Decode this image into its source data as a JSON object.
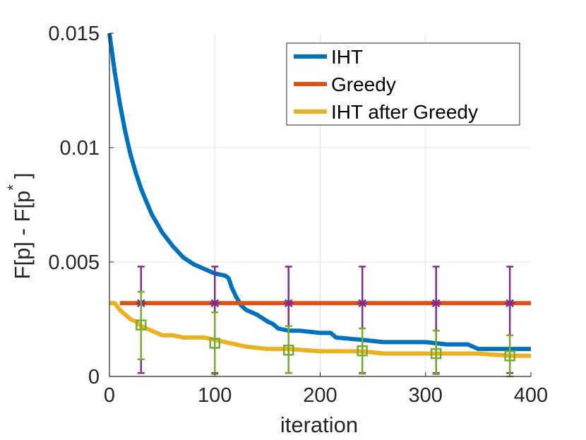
{
  "chart_data": {
    "type": "line",
    "title": "",
    "xlabel": "iteration",
    "ylabel_main": "F[p] - F[p",
    "ylabel_sup": "*",
    "ylabel_close": "]",
    "xlim": [
      0,
      400
    ],
    "ylim": [
      0,
      0.015
    ],
    "xticks": [
      0,
      100,
      200,
      300,
      400
    ],
    "xtick_labels": [
      "0",
      "100",
      "200",
      "300",
      "400"
    ],
    "yticks": [
      0,
      0.005,
      0.01,
      0.015
    ],
    "ytick_labels": [
      "0",
      "0.005",
      "0.01",
      "0.015"
    ],
    "grid": true,
    "legend_position": "top-right",
    "series": [
      {
        "name": "IHT",
        "color": "#0072BD",
        "style": "solid",
        "x": [
          0,
          5,
          10,
          15,
          20,
          25,
          30,
          40,
          50,
          60,
          70,
          80,
          90,
          100,
          110,
          113,
          116,
          120,
          125,
          130,
          140,
          150,
          155,
          160,
          170,
          180,
          200,
          210,
          215,
          240,
          260,
          300,
          320,
          330,
          340,
          345,
          350,
          400
        ],
        "y": [
          0.015,
          0.0133,
          0.0119,
          0.0107,
          0.0097,
          0.0089,
          0.0082,
          0.0071,
          0.0063,
          0.0057,
          0.0052,
          0.0049,
          0.0047,
          0.0045,
          0.0044,
          0.0043,
          0.0039,
          0.0035,
          0.0031,
          0.0029,
          0.0027,
          0.0024,
          0.0023,
          0.0021,
          0.002,
          0.002,
          0.0019,
          0.0019,
          0.0017,
          0.0016,
          0.0015,
          0.0015,
          0.0014,
          0.0014,
          0.0014,
          0.0013,
          0.0012,
          0.0012
        ]
      },
      {
        "name": "Greedy",
        "color": "#D95319",
        "style": "solid",
        "x": [
          10,
          400
        ],
        "y": [
          0.0032,
          0.0032
        ]
      },
      {
        "name": "IHT after Greedy",
        "color": "#EDB120",
        "style": "solid",
        "x": [
          0,
          5,
          10,
          15,
          20,
          25,
          30,
          40,
          50,
          60,
          70,
          80,
          90,
          100,
          110,
          130,
          150,
          170,
          200,
          240,
          260,
          300,
          350,
          380,
          400
        ],
        "y": [
          0.0032,
          0.0032,
          0.0029,
          0.0027,
          0.0025,
          0.0024,
          0.0022,
          0.002,
          0.0018,
          0.0018,
          0.0017,
          0.0017,
          0.0017,
          0.0016,
          0.0015,
          0.0013,
          0.0012,
          0.0012,
          0.0011,
          0.0011,
          0.001,
          0.001,
          0.001,
          0.0009,
          0.0009
        ]
      },
      {
        "name": "Greedy error bars",
        "color": "#7E2F8E",
        "marker": "star",
        "x": [
          30,
          100,
          170,
          240,
          310,
          380
        ],
        "y": [
          0.0032,
          0.0032,
          0.0032,
          0.0032,
          0.0032,
          0.0032
        ],
        "err_low": [
          0.00015,
          0.00015,
          0.00015,
          0.00015,
          0.00015,
          0.00015
        ],
        "err_high": [
          0.0048,
          0.0048,
          0.0048,
          0.0048,
          0.0048,
          0.0048
        ]
      },
      {
        "name": "IHT after Greedy error bars",
        "color": "#77AC30",
        "marker": "square",
        "x": [
          30,
          100,
          170,
          240,
          310,
          380
        ],
        "y": [
          0.00225,
          0.00145,
          0.00115,
          0.00112,
          0.001,
          0.0009
        ],
        "err_low": [
          0.00075,
          0.0001,
          0.00015,
          0.00012,
          0.0001,
          0.0
        ],
        "err_high": [
          0.0037,
          0.0028,
          0.0022,
          0.0021,
          0.002,
          0.0018
        ]
      }
    ],
    "legend": [
      {
        "label": "IHT",
        "color": "#0072BD"
      },
      {
        "label": "Greedy",
        "color": "#D95319"
      },
      {
        "label": "IHT after Greedy",
        "color": "#EDB120"
      }
    ]
  }
}
